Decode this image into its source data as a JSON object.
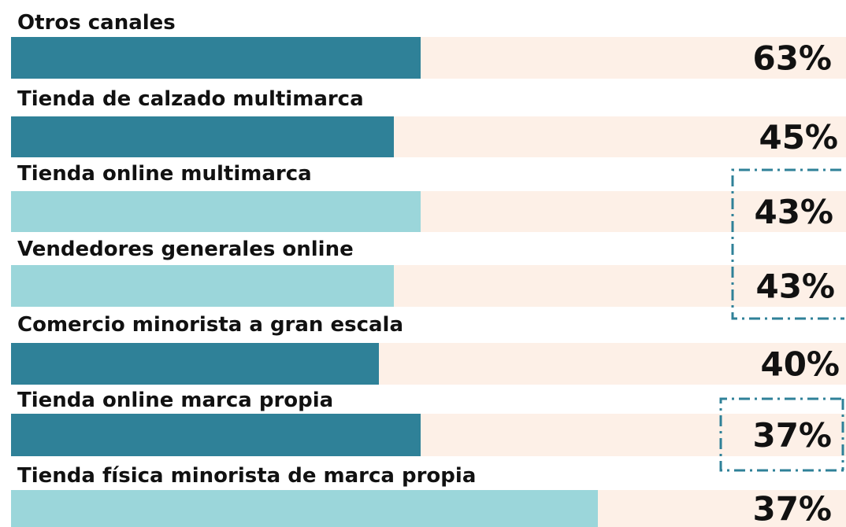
{
  "items": [
    {
      "label": "Otros canales",
      "value": "63%"
    },
    {
      "label": "Tienda de calzado multimarca",
      "value": "45%"
    },
    {
      "label": "Tienda online multimarca",
      "value": "43%"
    },
    {
      "label": "Vendedores generales online",
      "value": "43%"
    },
    {
      "label": "Comercio minorista a gran escala",
      "value": "40%"
    },
    {
      "label": "Tienda online marca propia",
      "value": "37%"
    },
    {
      "label": "Tienda física minorista de marca propia",
      "value": "37%"
    }
  ]
}
